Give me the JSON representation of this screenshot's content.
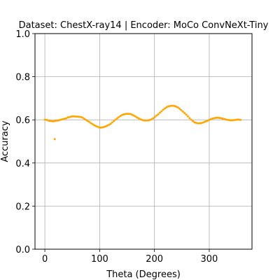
{
  "chart_data": {
    "type": "scatter",
    "title": "Dataset: ChestX-ray14 | Encoder: MoCo ConvNeXt-Tiny",
    "xlabel": "Theta (Degrees)",
    "ylabel": "Accuracy",
    "xlim": [
      -18,
      378
    ],
    "ylim": [
      0.0,
      1.0
    ],
    "xticks": [
      0,
      100,
      200,
      300
    ],
    "yticks": [
      0.0,
      0.2,
      0.4,
      0.6,
      0.8,
      1.0
    ],
    "xtick_labels": [
      "0",
      "100",
      "200",
      "300"
    ],
    "ytick_labels": [
      "0.0",
      "0.2",
      "0.4",
      "0.6",
      "0.8",
      "1.0"
    ],
    "grid": true,
    "marker_color": "#ffa500",
    "series": [
      {
        "name": "accuracy",
        "x": [
          0,
          3,
          6,
          9,
          12,
          15,
          18,
          21,
          24,
          27,
          30,
          33,
          36,
          39,
          42,
          45,
          48,
          51,
          54,
          57,
          60,
          63,
          66,
          69,
          72,
          75,
          78,
          81,
          84,
          87,
          90,
          93,
          96,
          99,
          102,
          105,
          108,
          111,
          114,
          117,
          120,
          123,
          126,
          129,
          132,
          135,
          138,
          141,
          144,
          147,
          150,
          153,
          156,
          159,
          162,
          165,
          168,
          171,
          174,
          177,
          180,
          183,
          186,
          189,
          192,
          195,
          198,
          201,
          204,
          207,
          210,
          213,
          216,
          219,
          222,
          225,
          228,
          231,
          234,
          237,
          240,
          243,
          246,
          249,
          252,
          255,
          258,
          261,
          264,
          267,
          270,
          273,
          276,
          279,
          282,
          285,
          288,
          291,
          294,
          297,
          300,
          303,
          306,
          309,
          312,
          315,
          318,
          321,
          324,
          327,
          330,
          333,
          336,
          339,
          342,
          345,
          348,
          351,
          354,
          357,
          18
        ],
        "y": [
          0.601,
          0.6,
          0.597,
          0.595,
          0.594,
          0.593,
          0.594,
          0.596,
          0.597,
          0.599,
          0.601,
          0.603,
          0.605,
          0.607,
          0.611,
          0.613,
          0.615,
          0.616,
          0.616,
          0.615,
          0.615,
          0.614,
          0.613,
          0.61,
          0.605,
          0.6,
          0.595,
          0.59,
          0.585,
          0.58,
          0.575,
          0.571,
          0.568,
          0.565,
          0.564,
          0.565,
          0.567,
          0.57,
          0.573,
          0.577,
          0.582,
          0.588,
          0.594,
          0.601,
          0.607,
          0.613,
          0.618,
          0.622,
          0.625,
          0.627,
          0.628,
          0.628,
          0.627,
          0.624,
          0.62,
          0.616,
          0.611,
          0.607,
          0.603,
          0.6,
          0.598,
          0.597,
          0.597,
          0.598,
          0.6,
          0.603,
          0.608,
          0.614,
          0.62,
          0.626,
          0.633,
          0.64,
          0.647,
          0.653,
          0.658,
          0.662,
          0.664,
          0.665,
          0.665,
          0.664,
          0.661,
          0.657,
          0.651,
          0.645,
          0.638,
          0.631,
          0.624,
          0.616,
          0.608,
          0.601,
          0.594,
          0.589,
          0.586,
          0.584,
          0.584,
          0.585,
          0.587,
          0.59,
          0.593,
          0.596,
          0.6,
          0.603,
          0.606,
          0.608,
          0.609,
          0.61,
          0.609,
          0.608,
          0.606,
          0.604,
          0.602,
          0.6,
          0.599,
          0.598,
          0.598,
          0.599,
          0.6,
          0.601,
          0.601,
          0.6,
          0.51
        ]
      }
    ]
  }
}
